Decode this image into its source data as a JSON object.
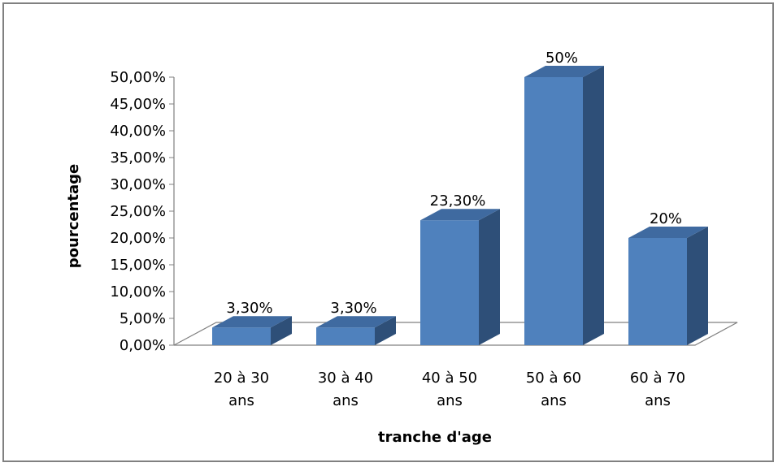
{
  "chart_data": {
    "type": "bar",
    "categories": [
      [
        "20 à 30",
        "ans"
      ],
      [
        "30 à 40",
        "ans"
      ],
      [
        "40 à 50",
        "ans"
      ],
      [
        "50 à 60",
        "ans"
      ],
      [
        "60 à 70",
        "ans"
      ]
    ],
    "values": [
      3.3,
      3.3,
      23.3,
      50,
      20
    ],
    "data_labels": [
      "3,30%",
      "3,30%",
      "23,30%",
      "50%",
      "20%"
    ],
    "title": "",
    "xlabel": "tranche d'age",
    "ylabel": "pourcentage",
    "ylim": [
      0,
      50
    ],
    "y_ticks": [
      "0,00%",
      "5,00%",
      "10,00%",
      "15,00%",
      "20,00%",
      "25,00%",
      "30,00%",
      "35,00%",
      "40,00%",
      "45,00%",
      "50,00%"
    ],
    "grid": false,
    "legend": "none",
    "style": "3d-column",
    "colors": {
      "bar_front": "#4f81bd",
      "bar_side": "#2e4f78",
      "bar_top": "#3f6aa0",
      "axis": "#808080"
    }
  }
}
